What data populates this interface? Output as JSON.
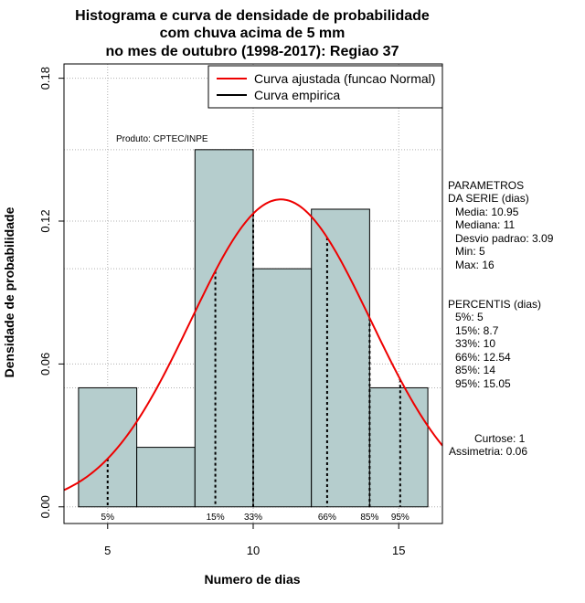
{
  "chart_data": {
    "type": "bar",
    "title_lines": [
      "Histograma e curva de densidade de probabilidade",
      "com chuva acima de 5 mm",
      "no mes de outubro (1998-2017): Regiao 37"
    ],
    "xlabel": "Numero de dias",
    "ylabel": "Densidade de probabilidade",
    "xlim": [
      3.5,
      16.5
    ],
    "ylim": [
      -0.007,
      0.186
    ],
    "x_ticks": [
      5,
      10,
      15
    ],
    "y_ticks": [
      0.0,
      0.06,
      0.12,
      0.18
    ],
    "y_tick_labels": [
      "0.00",
      "0.06",
      "0.12",
      "0.18"
    ],
    "bins": [
      {
        "x0": 4,
        "x1": 6,
        "density": 0.05
      },
      {
        "x0": 6,
        "x1": 8,
        "density": 0.025
      },
      {
        "x0": 8,
        "x1": 10,
        "density": 0.15
      },
      {
        "x0": 10,
        "x1": 12,
        "density": 0.1
      },
      {
        "x0": 12,
        "x1": 14,
        "density": 0.125
      },
      {
        "x0": 14,
        "x1": 16,
        "density": 0.05
      }
    ],
    "normal_fit": {
      "mean": 10.95,
      "sd": 3.09,
      "x_range": [
        3.5,
        16.5
      ]
    },
    "percentile_lines": [
      {
        "label": "5%",
        "x": 5
      },
      {
        "label": "15%",
        "x": 8.7
      },
      {
        "label": "33%",
        "x": 10
      },
      {
        "label": "66%",
        "x": 12.54
      },
      {
        "label": "85%",
        "x": 14
      },
      {
        "label": "95%",
        "x": 15.05
      }
    ],
    "legend": [
      {
        "label": "Curva ajustada (funcao Normal)",
        "color": "#ee0000"
      },
      {
        "label": "Curva empirica",
        "color": "#000000"
      }
    ],
    "legend_position": "top-right",
    "product_label": "Produto: CPTEC/INPE",
    "grid": true,
    "colors": {
      "bar_fill": "#b5cdcd",
      "curve": "#ee0000",
      "grid": "#b0b0b0"
    }
  },
  "sidebar": {
    "params_title_1": "PARAMETROS",
    "params_title_2": "DA SERIE (dias)",
    "params": [
      "Media: 10.95",
      "Mediana: 11",
      "Desvio padrao: 3.09",
      "Min: 5",
      "Max: 16"
    ],
    "percentis_title": "PERCENTIS (dias)",
    "percentis": [
      "5%: 5",
      "15%: 8.7",
      "33%: 10",
      "66%: 12.54",
      "85%: 14",
      "95%: 15.05"
    ],
    "curtose": "Curtose: 1",
    "assimetria": "Assimetria: 0.06"
  }
}
